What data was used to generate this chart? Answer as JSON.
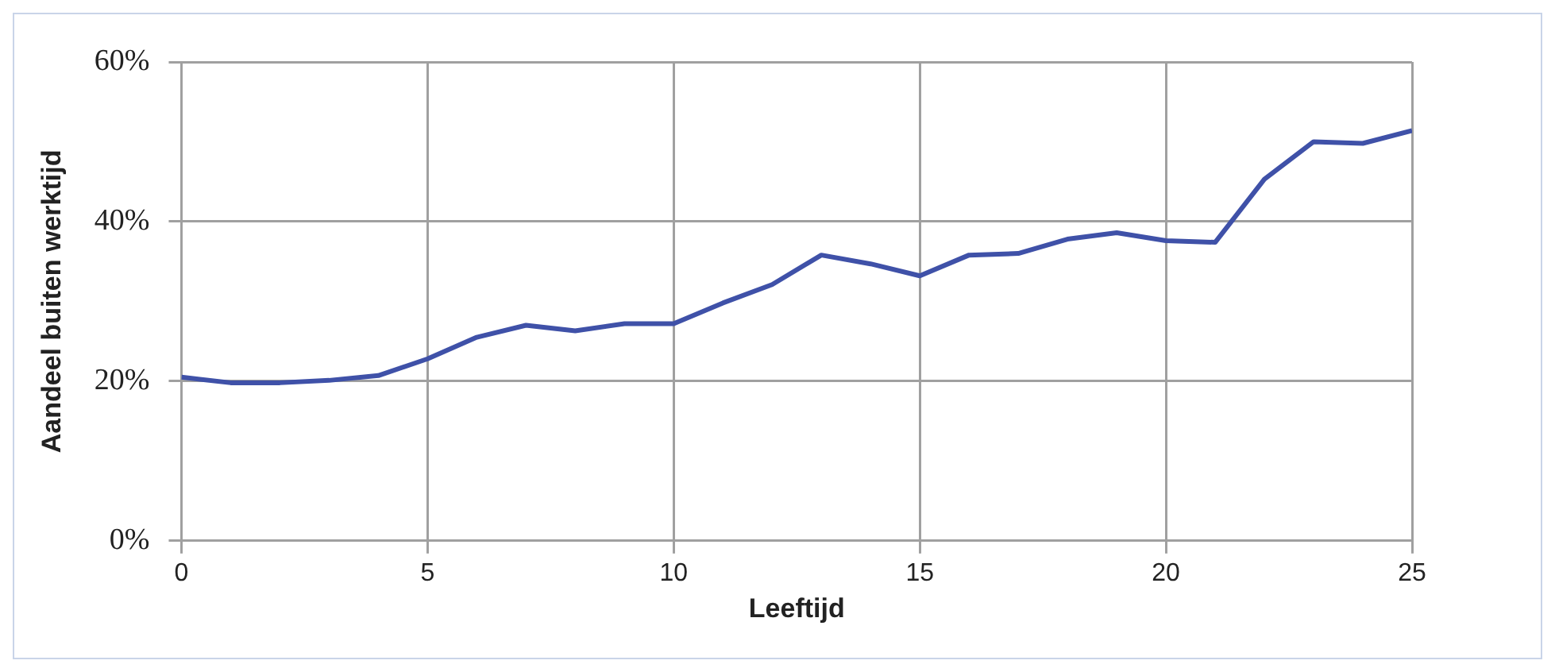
{
  "chart_data": {
    "type": "line",
    "xlabel": "Leeftijd",
    "ylabel": "Aandeel buiten werktijd",
    "x": [
      0,
      1,
      2,
      3,
      4,
      5,
      6,
      7,
      8,
      9,
      10,
      11,
      12,
      13,
      14,
      15,
      16,
      17,
      18,
      19,
      20,
      21,
      22,
      23,
      24,
      25
    ],
    "series": [
      {
        "color": "#3f51a8",
        "values": [
          20.5,
          19.8,
          19.8,
          20.1,
          20.7,
          22.8,
          25.5,
          27,
          26.3,
          27.2,
          27.2,
          29.8,
          32.1,
          35.8,
          34.7,
          33.2,
          35.8,
          36,
          37.8,
          38.6,
          37.6,
          37.4,
          45.3,
          50,
          49.8,
          51.4
        ]
      }
    ],
    "xlim": [
      0,
      25
    ],
    "xticks": [
      0,
      5,
      10,
      15,
      20,
      25
    ],
    "ylim": [
      0,
      60
    ],
    "yticks": [
      {
        "value": 0,
        "label": "0%"
      },
      {
        "value": 20,
        "label": "20%"
      },
      {
        "value": 40,
        "label": "40%"
      },
      {
        "value": 60,
        "label": "60%"
      }
    ],
    "grid": true,
    "legend": false,
    "marker": "none",
    "line_style": "solid"
  }
}
